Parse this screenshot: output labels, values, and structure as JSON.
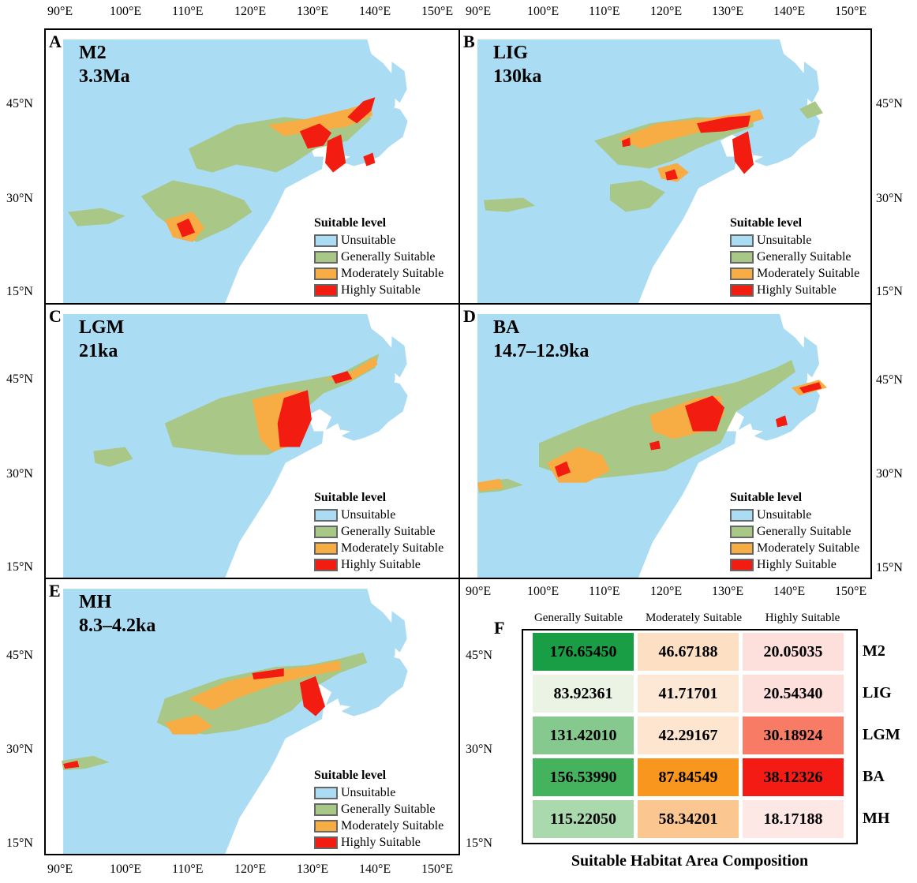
{
  "lon_ticks": [
    "90°E",
    "100°E",
    "110°E",
    "120°E",
    "130°E",
    "140°E",
    "150°E"
  ],
  "lat_ticks": [
    "45°N",
    "30°N",
    "15°N"
  ],
  "legend": {
    "title": "Suitable level",
    "items": [
      {
        "label": "Unsuitable",
        "color": "#aadcf3"
      },
      {
        "label": "Generally Suitable",
        "color": "#a9c786"
      },
      {
        "label": "Moderately Suitable",
        "color": "#f7ad44"
      },
      {
        "label": "Highly Suitable",
        "color": "#f21c10"
      }
    ]
  },
  "panels": [
    {
      "letter": "A",
      "name": "M2",
      "period": "3.3Ma"
    },
    {
      "letter": "B",
      "name": "LIG",
      "period": "130ka"
    },
    {
      "letter": "C",
      "name": "LGM",
      "period": "21ka"
    },
    {
      "letter": "D",
      "name": "BA",
      "period": "14.7–12.9ka"
    },
    {
      "letter": "E",
      "name": "MH",
      "period": "8.3–4.2ka"
    }
  ],
  "table": {
    "letter": "F",
    "title": "Suitable Habitat Area Composition",
    "columns": [
      "Generally Suitable",
      "Moderately Suitable",
      "Highly Suitable"
    ],
    "rows": [
      {
        "name": "M2",
        "values": [
          "176.65450",
          "46.67188",
          "20.05035"
        ],
        "colors": [
          "#1a9e45",
          "#fde0c4",
          "#fde0dc"
        ]
      },
      {
        "name": "LIG",
        "values": [
          "83.92361",
          "41.71701",
          "20.54340"
        ],
        "colors": [
          "#eaf3e4",
          "#fde8d6",
          "#fde0dc"
        ]
      },
      {
        "name": "LGM",
        "values": [
          "131.42010",
          "42.29167",
          "30.18924"
        ],
        "colors": [
          "#86c98e",
          "#fde5cf",
          "#f87b66"
        ]
      },
      {
        "name": "BA",
        "values": [
          "156.53990",
          "87.84549",
          "38.12326"
        ],
        "colors": [
          "#45b25e",
          "#f9961e",
          "#f31b13"
        ]
      },
      {
        "name": "MH",
        "values": [
          "115.22050",
          "58.34201",
          "18.17188"
        ],
        "colors": [
          "#aad9ad",
          "#fbc690",
          "#fde8e6"
        ]
      }
    ]
  }
}
